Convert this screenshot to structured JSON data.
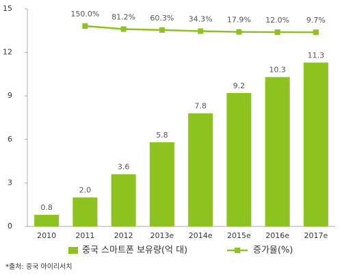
{
  "chart_data": {
    "type": "bar-line",
    "categories": [
      "2010",
      "2011",
      "2012",
      "2013e",
      "2014e",
      "2015e",
      "2016e",
      "2017e"
    ],
    "series": [
      {
        "name": "중국 스마트폰 보유량(억 대)",
        "type": "bar",
        "color": "#8dc21f",
        "values": [
          0.8,
          2.0,
          3.6,
          5.8,
          7.8,
          9.2,
          10.3,
          11.3
        ],
        "value_labels": [
          "0.8",
          "2.0",
          "3.6",
          "5.8",
          "7.8",
          "9.2",
          "10.3",
          "11.3"
        ]
      },
      {
        "name": "증가율(%)",
        "type": "line",
        "axis": "y2",
        "color": "#8dc21f",
        "values": [
          null,
          150.0,
          81.2,
          60.3,
          34.3,
          17.9,
          12.0,
          9.7
        ],
        "value_labels": [
          null,
          "150.0%",
          "81.2%",
          "60.3%",
          "34.3%",
          "17.9%",
          "12.0%",
          "9.7%"
        ]
      }
    ],
    "ylim": [
      0,
      15
    ],
    "yticks": [
      0,
      3,
      6,
      9,
      12,
      15
    ],
    "y2lim": [
      -4400,
      540
    ],
    "legend": "bottom",
    "source": "*출처: 중국 아이리서치"
  }
}
